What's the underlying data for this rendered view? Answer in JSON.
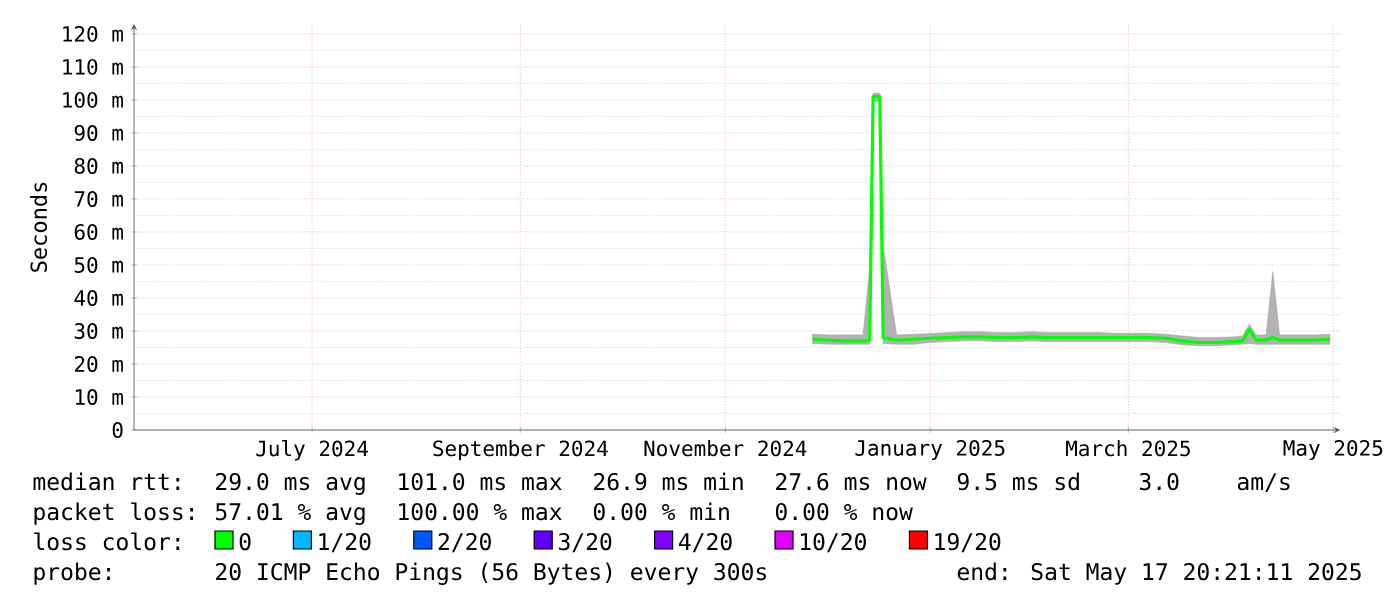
{
  "chart_data": {
    "type": "line",
    "ylabel": "Seconds",
    "xlim": [
      "2024-05-09",
      "2025-05-03"
    ],
    "xticks": [
      {
        "value": "2024-07-01",
        "label": "July 2024"
      },
      {
        "value": "2024-09-01",
        "label": "September 2024"
      },
      {
        "value": "2024-11-01",
        "label": "November 2024"
      },
      {
        "value": "2025-01-01",
        "label": "January 2025"
      },
      {
        "value": "2025-03-01",
        "label": "March 2025"
      },
      {
        "value": "2025-05-01",
        "label": "May 2025"
      }
    ],
    "ylim": [
      0,
      123
    ],
    "yticks": [
      0,
      {
        "value": 10,
        "label": "10 m"
      },
      {
        "value": 20,
        "label": "20 m"
      },
      {
        "value": 30,
        "label": "30 m"
      },
      {
        "value": 40,
        "label": "40 m"
      },
      {
        "value": 50,
        "label": "50 m"
      },
      {
        "value": 60,
        "label": "60 m"
      },
      {
        "value": 70,
        "label": "70 m"
      },
      {
        "value": 80,
        "label": "80 m"
      },
      {
        "value": 90,
        "label": "90 m"
      },
      {
        "value": 100,
        "label": "100 m"
      },
      {
        "value": 110,
        "label": "110 m"
      },
      {
        "value": 120,
        "label": "120 m"
      }
    ],
    "grid": true,
    "legend": "bottom",
    "legend_title": "loss color:",
    "x": [
      "2024-11-27",
      "2024-12-02",
      "2024-12-07",
      "2024-12-12",
      "2024-12-14",
      "2024-12-15",
      "2024-12-17",
      "2024-12-18",
      "2024-12-22",
      "2024-12-27",
      "2025-01-01",
      "2025-01-06",
      "2025-01-11",
      "2025-01-16",
      "2025-01-21",
      "2025-01-26",
      "2025-01-31",
      "2025-02-05",
      "2025-02-10",
      "2025-02-15",
      "2025-02-20",
      "2025-02-25",
      "2025-03-02",
      "2025-03-07",
      "2025-03-12",
      "2025-03-17",
      "2025-03-22",
      "2025-03-27",
      "2025-04-01",
      "2025-04-04",
      "2025-04-06",
      "2025-04-08",
      "2025-04-11",
      "2025-04-13",
      "2025-04-15",
      "2025-04-20",
      "2025-04-25",
      "2025-04-30"
    ],
    "series": [
      {
        "name": "0",
        "color": "#00ff00",
        "values": [
          27.5,
          27.2,
          27,
          27,
          27.2,
          101,
          101,
          28,
          27.2,
          27.5,
          27.8,
          28,
          28.2,
          28.2,
          28,
          28,
          28.2,
          28,
          28,
          28,
          28,
          28,
          28,
          28,
          27.8,
          27,
          26.5,
          26.5,
          26.8,
          27,
          30.5,
          27.2,
          27.2,
          28,
          27.2,
          27.2,
          27.2,
          27.5
        ],
        "lower": [
          26.2,
          26,
          26,
          26,
          26,
          99.5,
          99.5,
          26.2,
          26,
          26,
          26.5,
          26.8,
          27,
          27,
          26.8,
          26.8,
          27,
          26.8,
          26.8,
          26.8,
          26.8,
          26.8,
          26.8,
          26.8,
          26.5,
          25.8,
          25.5,
          25.5,
          25.8,
          26,
          26.2,
          26,
          26,
          26,
          26,
          26,
          26,
          26
        ],
        "upper": [
          29,
          28.8,
          28.8,
          28.8,
          49,
          102,
          102,
          56,
          28.8,
          29,
          29.2,
          29.5,
          29.8,
          29.8,
          29.5,
          29.5,
          29.8,
          29.5,
          29.5,
          29.5,
          29.5,
          29.3,
          29.3,
          29.3,
          29,
          28.5,
          28,
          28,
          28.2,
          28.5,
          32,
          28.8,
          28.8,
          48,
          28.8,
          28.8,
          28.8,
          29
        ]
      },
      {
        "name": "1/20",
        "color": "#00b8ff",
        "values": [
          null,
          null,
          null,
          null,
          null,
          null,
          null,
          null,
          null,
          null,
          null,
          null,
          null,
          null,
          null,
          null,
          null,
          null,
          null,
          null,
          null,
          null,
          null,
          null,
          null,
          null,
          null,
          null,
          null,
          null,
          null,
          null,
          null,
          null,
          null,
          null,
          null,
          null
        ]
      },
      {
        "name": "2/20",
        "color": "#0059ff",
        "values": [
          null,
          null,
          null,
          null,
          null,
          null,
          null,
          null,
          null,
          null,
          null,
          null,
          null,
          null,
          null,
          null,
          null,
          null,
          null,
          null,
          null,
          null,
          null,
          null,
          null,
          null,
          null,
          null,
          null,
          null,
          null,
          null,
          null,
          null,
          null,
          null,
          null,
          null
        ]
      },
      {
        "name": "3/20",
        "color": "#5e00ff",
        "values": [
          null,
          null,
          null,
          null,
          null,
          null,
          null,
          null,
          null,
          null,
          null,
          null,
          null,
          null,
          null,
          null,
          null,
          null,
          null,
          null,
          null,
          null,
          null,
          null,
          null,
          null,
          null,
          null,
          null,
          null,
          null,
          null,
          null,
          null,
          null,
          null,
          null,
          null
        ]
      },
      {
        "name": "4/20",
        "color": "#7e00ff",
        "values": [
          null,
          null,
          null,
          null,
          null,
          null,
          null,
          null,
          null,
          null,
          null,
          null,
          null,
          null,
          null,
          null,
          null,
          null,
          null,
          null,
          null,
          null,
          null,
          null,
          null,
          null,
          null,
          null,
          null,
          null,
          null,
          null,
          null,
          null,
          null,
          null,
          null,
          null
        ]
      },
      {
        "name": "10/20",
        "color": "#dd00ff",
        "values": [
          null,
          null,
          null,
          null,
          null,
          null,
          null,
          null,
          null,
          null,
          null,
          null,
          null,
          null,
          null,
          null,
          null,
          null,
          null,
          null,
          null,
          null,
          null,
          null,
          null,
          null,
          null,
          null,
          null,
          null,
          null,
          null,
          null,
          null,
          null,
          null,
          null,
          null
        ]
      },
      {
        "name": "19/20",
        "color": "#ff0000",
        "values": [
          null,
          null,
          null,
          null,
          null,
          null,
          null,
          null,
          null,
          null,
          null,
          null,
          null,
          null,
          null,
          null,
          null,
          null,
          null,
          null,
          null,
          null,
          null,
          null,
          null,
          null,
          null,
          null,
          null,
          null,
          null,
          null,
          null,
          null,
          null,
          null,
          null,
          null
        ]
      }
    ],
    "annotations": [
      "median rtt:",
      "29.0 ms avg",
      "101.0 ms max",
      "26.9 ms min",
      "27.6 ms now",
      "9.5 ms sd",
      "3.0",
      "am/s",
      "packet loss:",
      "57.01 % avg",
      "100.00 % max",
      "0.00 % min",
      "0.00 % now",
      "probe:",
      "20 ICMP Echo Pings (56 Bytes) every 300s",
      "end: Sat May 17 20:21:11 2025"
    ]
  }
}
